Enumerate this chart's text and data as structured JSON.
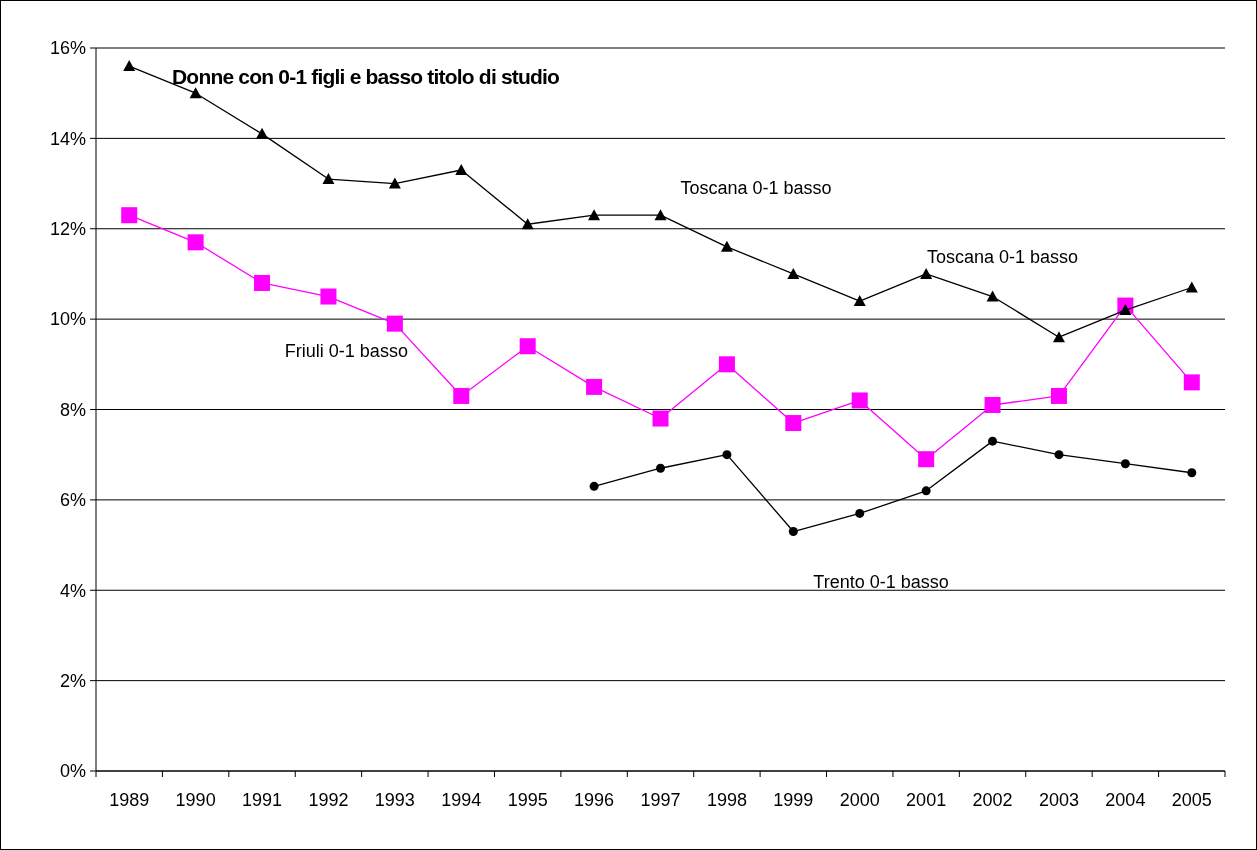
{
  "chart_data": {
    "type": "line",
    "title": "Donne con 0-1 figli e basso titolo di studio",
    "categories": [
      "1989",
      "1990",
      "1991",
      "1992",
      "1993",
      "1994",
      "1995",
      "1996",
      "1997",
      "1998",
      "1999",
      "2000",
      "2001",
      "2002",
      "2003",
      "2004",
      "2005"
    ],
    "series": [
      {
        "name": "Toscana 0-1 basso",
        "color": "#000000",
        "marker": "triangle",
        "values": [
          15.6,
          15.0,
          14.1,
          13.1,
          13.0,
          13.3,
          12.1,
          12.3,
          12.3,
          11.6,
          11.0,
          10.4,
          11.0,
          10.5,
          9.6,
          10.2,
          10.7
        ]
      },
      {
        "name": "Friuli 0-1 basso",
        "color": "#ff00ff",
        "marker": "square",
        "values": [
          12.3,
          11.7,
          10.8,
          10.5,
          9.9,
          8.3,
          9.4,
          8.5,
          7.8,
          9.0,
          7.7,
          8.2,
          6.9,
          8.1,
          8.3,
          10.3,
          8.6
        ]
      },
      {
        "name": "Trento 0-1 basso",
        "color": "#000000",
        "marker": "circle",
        "values": [
          null,
          null,
          null,
          null,
          null,
          null,
          null,
          6.3,
          6.7,
          7.0,
          5.3,
          5.7,
          6.2,
          7.3,
          7.0,
          6.8,
          6.6
        ]
      }
    ],
    "annotations": [
      "Toscana 0-1 basso"
    ],
    "ylim": [
      0,
      16
    ],
    "yticks": [
      {
        "value": 0,
        "label": "0%"
      },
      {
        "value": 2,
        "label": "2%"
      },
      {
        "value": 4,
        "label": "4%"
      },
      {
        "value": 6,
        "label": "6%"
      },
      {
        "value": 8,
        "label": "8%"
      },
      {
        "value": 10,
        "label": "10%"
      },
      {
        "value": 12,
        "label": "12%"
      },
      {
        "value": 14,
        "label": "14%"
      },
      {
        "value": 16,
        "label": "16%"
      }
    ],
    "grid": "y"
  }
}
